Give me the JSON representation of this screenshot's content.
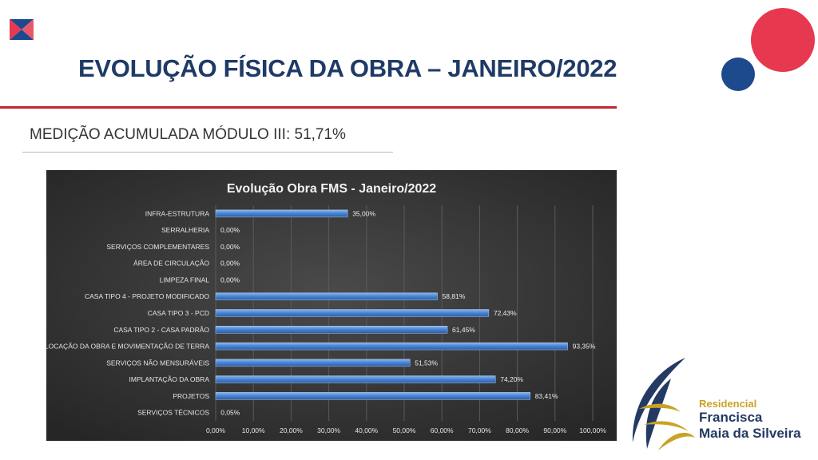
{
  "header": {
    "title": "EVOLUÇÃO FÍSICA DA OBRA – JANEIRO/2022",
    "subtitle": "MEDIÇÃO ACUMULADA MÓDULO III: 51,71%"
  },
  "brand": {
    "line1": "Residencial",
    "line2": "Francisca",
    "line3": "Maia da Silveira"
  },
  "colors": {
    "title": "#1f3a66",
    "accent_red": "#c0282d",
    "circle_red": "#e63950",
    "circle_blue": "#1d4a8c",
    "bar": "#4a86d6",
    "chart_bg": "#3a3a3a",
    "brand_gold": "#c9a227"
  },
  "chart_data": {
    "type": "bar",
    "orientation": "horizontal",
    "title": "Evolução Obra FMS - Janeiro/2022",
    "categories": [
      "INFRA-ESTRUTURA",
      "SERRALHERIA",
      "SERVIÇOS COMPLEMENTARES",
      "ÁREA DE CIRCULAÇÃO",
      "LIMPEZA FINAL",
      "CASA TIPO 4 - PROJETO MODIFICADO",
      "CASA TIPO 3 - PCD",
      "CASA TIPO 2 - CASA PADRÃO",
      "LOCAÇÃO DA OBRA E MOVIMENTAÇÃO DE TERRA",
      "SERVIÇOS NÃO MENSURÁVEIS",
      "IMPLANTAÇÃO DA OBRA",
      "PROJETOS",
      "SERVIÇOS TÉCNICOS"
    ],
    "values": [
      35.0,
      0.0,
      0.0,
      0.0,
      0.0,
      58.81,
      72.43,
      61.45,
      93.35,
      51.53,
      74.2,
      83.41,
      0.05
    ],
    "value_labels": [
      "35,00%",
      "0,00%",
      "0,00%",
      "0,00%",
      "0,00%",
      "58,81%",
      "72,43%",
      "61,45%",
      "93,35%",
      "51,53%",
      "74,20%",
      "83,41%",
      "0,05%"
    ],
    "xticks": [
      "0,00%",
      "10,00%",
      "20,00%",
      "30,00%",
      "40,00%",
      "50,00%",
      "60,00%",
      "70,00%",
      "80,00%",
      "90,00%",
      "100,00%"
    ],
    "xlim": [
      0,
      100
    ],
    "grid": true
  }
}
